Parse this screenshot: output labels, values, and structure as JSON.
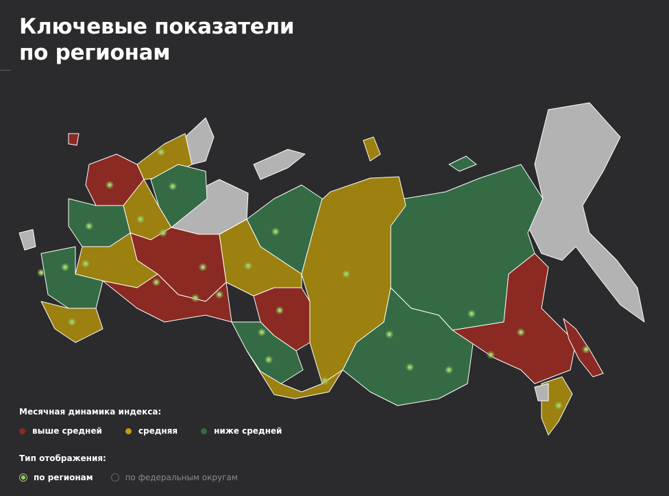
{
  "header": {
    "title_lines": [
      "Ключевые показатели",
      "по регионам"
    ]
  },
  "legend": {
    "title": "Месячная динамика индекса:",
    "items": [
      {
        "label": "выше средней",
        "color": "#8b2a22"
      },
      {
        "label": "средняя",
        "color": "#c49a10"
      },
      {
        "label": "ниже средней",
        "color": "#346b45"
      }
    ]
  },
  "display": {
    "title": "Тип отображения:",
    "options": [
      {
        "label": "по регионам",
        "selected": true
      },
      {
        "label": "по федеральным округам",
        "selected": false
      }
    ]
  }
}
